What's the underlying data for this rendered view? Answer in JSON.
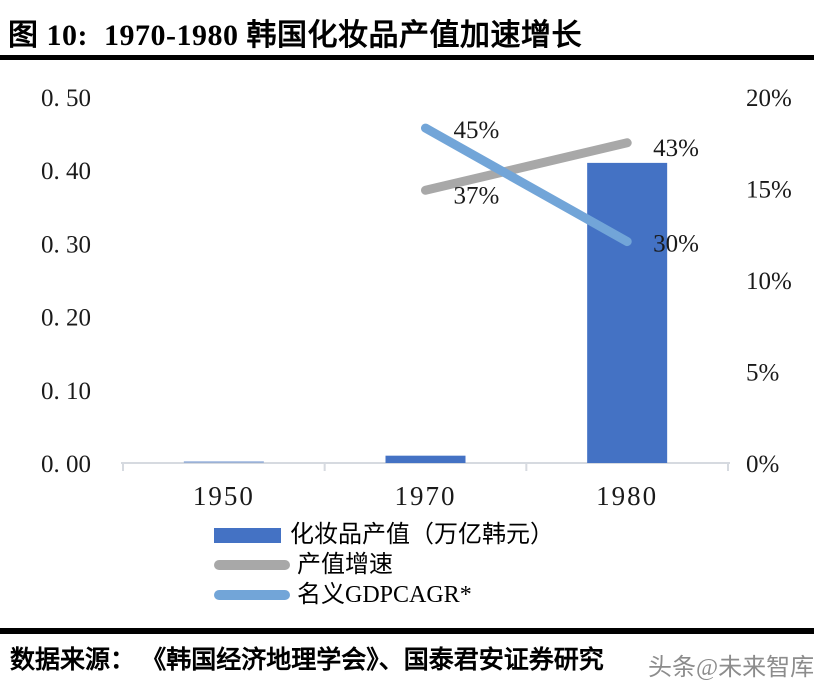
{
  "figure": {
    "title": "图 10:  1970-1980 韩国化妆品产值加速增长",
    "source": "数据来源： 《韩国经济地理学会》、国泰君安证券研究",
    "watermark": "头条@未来智库"
  },
  "chart_data": {
    "type": "bar",
    "subtype": "combo-bar-line-dual-axis",
    "title": "1970-1980 韩国化妆品产值加速增长",
    "categories": [
      "1950",
      "1970",
      "1980"
    ],
    "series": [
      {
        "name": "化妆品产值（万亿韩元）",
        "kind": "bar",
        "axis": "left",
        "color": "#4472C4",
        "values": [
          0.002,
          0.01,
          0.41
        ]
      },
      {
        "name": "产值增速",
        "kind": "line",
        "axis": "right",
        "color": "#A8A8A8",
        "values": [
          null,
          37,
          43
        ],
        "point_labels": [
          null,
          "37%",
          "43%"
        ],
        "plotted_right_axis_pct": [
          null,
          14.9,
          17.5
        ]
      },
      {
        "name": "名义GDPCAGR*",
        "kind": "line",
        "axis": "right",
        "color": "#72A5D8",
        "values": [
          null,
          45,
          30
        ],
        "point_labels": [
          null,
          "45%",
          "30%"
        ],
        "plotted_right_axis_pct": [
          null,
          18.3,
          12.1
        ]
      }
    ],
    "left_axis": {
      "min": 0,
      "max": 0.5,
      "tick_labels": [
        "0. 50",
        "0. 40",
        "0. 30",
        "0. 20",
        "0. 10",
        "0. 00"
      ]
    },
    "right_axis": {
      "min": 0,
      "max": 20,
      "unit": "%",
      "tick_labels": [
        "20%",
        "15%",
        "10%",
        "5%",
        "0%"
      ]
    },
    "grid": false,
    "legend_position": "bottom-left"
  }
}
